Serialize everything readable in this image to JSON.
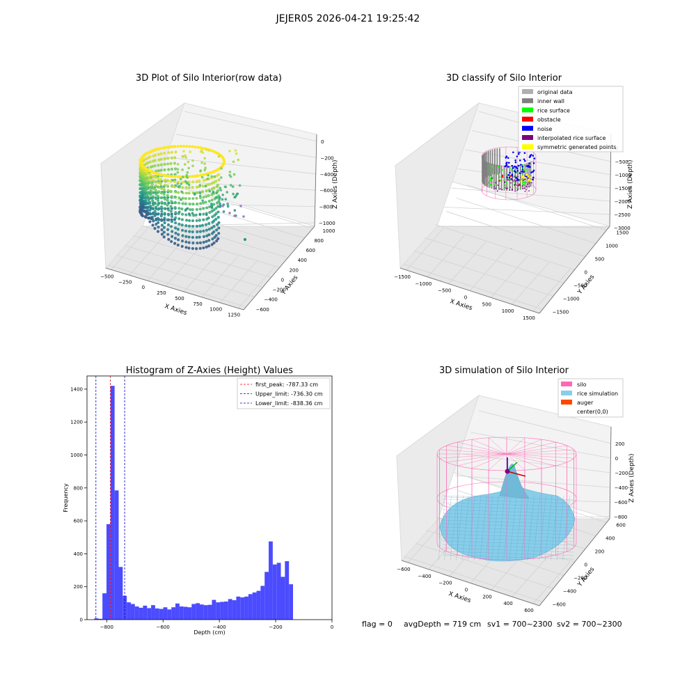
{
  "suptitle": "JEJER05 2026-04-21 19:25:42",
  "footer": {
    "flag": "flag = 0",
    "avg": "avgDepth = 719 cm",
    "sv1": "sv1 = 700~2300",
    "sv2": "sv2 = 700~2300"
  },
  "chart_data": [
    {
      "type": "scatter",
      "title": "3D Plot of Silo Interior(row data)",
      "xlabel": "X Axies",
      "ylabel": "Y Axies",
      "zlabel": "Z Axies (Depth)",
      "x_ticks": [
        "−500",
        "−250",
        "0",
        "250",
        "500",
        "750",
        "1000",
        "1250"
      ],
      "y_ticks": [
        "−600",
        "−400",
        "−200",
        "0",
        "200",
        "400",
        "600",
        "800",
        "1000"
      ],
      "z_ticks": [
        "0",
        "−200",
        "−400",
        "−600",
        "−800",
        "−1000"
      ],
      "colors": {
        "high": "#fde725",
        "mid": "#21918c",
        "low": "#3b528b",
        "outlier": "#a47fbf"
      }
    },
    {
      "type": "scatter",
      "title": "3D classify of Silo Interior",
      "xlabel": "X Axies",
      "ylabel": "Y Axies",
      "zlabel": "Z Axies (Depth)",
      "x_ticks": [
        "−1500",
        "−1000",
        "−500",
        "0",
        "500",
        "1000",
        "1500"
      ],
      "y_ticks": [
        "−1500",
        "−1000",
        "−500",
        "0",
        "500",
        "1000",
        "1500"
      ],
      "z_ticks": [
        "0",
        "−500",
        "−1000",
        "−1500",
        "−2000",
        "−2500",
        "−3000"
      ],
      "legend": [
        {
          "label": "original data",
          "color": "#b0b0b0"
        },
        {
          "label": "inner wall",
          "color": "#808080"
        },
        {
          "label": "rice surface",
          "color": "#00ff00"
        },
        {
          "label": "obstacle",
          "color": "#ff0000"
        },
        {
          "label": "noise",
          "color": "#0000ff"
        },
        {
          "label": "interpolated rice surface",
          "color": "#800080"
        },
        {
          "label": "symmetric generated points",
          "color": "#ffff00"
        }
      ],
      "legend_position": "top-right"
    },
    {
      "type": "bar",
      "title": "Histogram of Z-Axies (Height) Values",
      "xlabel": "Depth (cm)",
      "ylabel": "Frequency",
      "xlim": [
        -870,
        0
      ],
      "ylim": [
        0,
        1480
      ],
      "x_ticks": [
        -800,
        -600,
        -400,
        -200,
        0
      ],
      "y_ticks": [
        0,
        200,
        400,
        600,
        800,
        1000,
        1200,
        1400
      ],
      "bar_color": "#4b4bff",
      "bin_start": -844,
      "bin_width": 14.4,
      "values": [
        8,
        5,
        160,
        580,
        1420,
        785,
        320,
        145,
        105,
        95,
        80,
        72,
        85,
        70,
        88,
        68,
        65,
        75,
        62,
        75,
        98,
        80,
        78,
        75,
        95,
        100,
        92,
        88,
        90,
        120,
        105,
        108,
        110,
        125,
        118,
        140,
        135,
        140,
        155,
        165,
        175,
        205,
        290,
        475,
        335,
        345,
        260,
        355,
        215
      ],
      "lines": [
        {
          "label": "first_peak: -787.33 cm",
          "x": -787.33,
          "color": "#ff0000"
        },
        {
          "label": "Upper_limit: -736.30 cm",
          "x": -736.3,
          "color": "#0000cc"
        },
        {
          "label": "Lower_limit: -838.36 cm",
          "x": -838.36,
          "color": "#0000cc"
        }
      ],
      "legend_position": "top-right"
    },
    {
      "type": "surface",
      "title": "3D simulation of Silo Interior",
      "xlabel": "X Axies",
      "ylabel": "Y Axies",
      "zlabel": "Z Axies (Depth)",
      "x_ticks": [
        "−600",
        "−400",
        "−200",
        "0",
        "200",
        "400",
        "600"
      ],
      "y_ticks": [
        "−600",
        "−400",
        "−200",
        "0",
        "200",
        "400",
        "600"
      ],
      "z_ticks": [
        "200",
        "0",
        "−200",
        "−400",
        "−600",
        "−800"
      ],
      "legend": [
        {
          "label": "silo",
          "color": "#ff69b4"
        },
        {
          "label": "rice simulation",
          "color": "#87ceeb"
        },
        {
          "label": "auger",
          "color": "#ff4500"
        },
        {
          "label": "center(0,0)",
          "color": ""
        }
      ],
      "legend_position": "top-right"
    }
  ]
}
